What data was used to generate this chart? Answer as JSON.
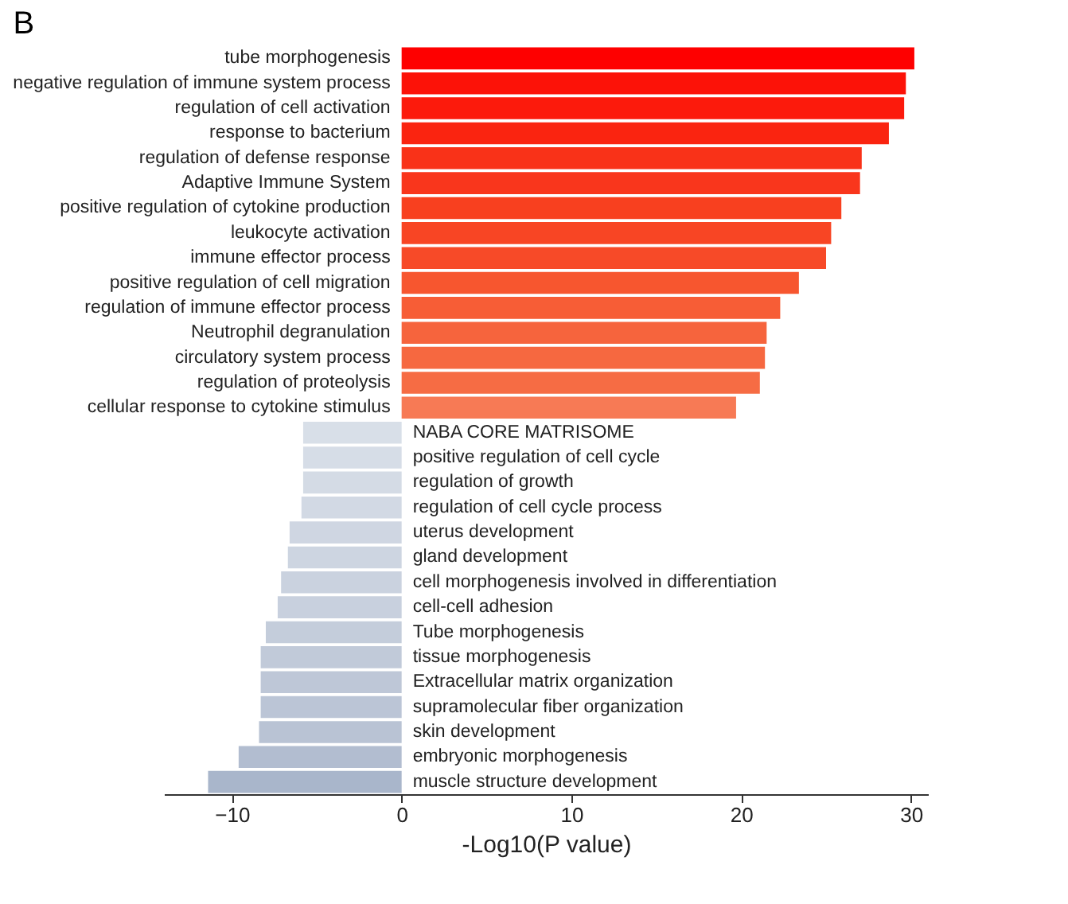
{
  "chart_data": {
    "type": "bar",
    "orientation": "horizontal",
    "title": "B",
    "xlabel": "-Log10(P value)",
    "categories": [
      "tube morphogenesis",
      "negative regulation of immune system process",
      "regulation of cell activation",
      "response to bacterium",
      "regulation of defense response",
      "Adaptive Immune System",
      "positive regulation of cytokine production",
      "leukocyte activation",
      "immune effector process",
      "positive regulation of cell migration",
      "regulation of immune effector process",
      "Neutrophil degranulation",
      "circulatory system process",
      "regulation of proteolysis",
      "cellular response to cytokine stimulus",
      "NABA CORE MATRISOME",
      "positive regulation of cell cycle",
      "regulation of growth",
      "regulation of cell cycle process",
      "uterus development",
      "gland development",
      "cell morphogenesis involved in differentiation",
      "cell-cell adhesion",
      "Tube morphogenesis",
      "tissue morphogenesis",
      "Extracellular matrix organization",
      "supramolecular fiber organization",
      "skin development",
      "embryonic morphogenesis",
      "muscle structure development"
    ],
    "values": [
      30.2,
      29.7,
      29.6,
      28.7,
      27.1,
      27.0,
      25.9,
      25.3,
      25.0,
      23.4,
      22.3,
      21.5,
      21.4,
      21.1,
      19.7,
      -5.8,
      -5.8,
      -5.8,
      -5.9,
      -6.6,
      -6.7,
      -7.1,
      -7.3,
      -8.0,
      -8.3,
      -8.3,
      -8.3,
      -8.4,
      -9.6,
      -11.4
    ],
    "colors": [
      "#fe0000",
      "#fc1208",
      "#fc1a0c",
      "#fa2410",
      "#f93218",
      "#f9361c",
      "#f8401f",
      "#f84524",
      "#f74a28",
      "#f7562f",
      "#f75d36",
      "#f6643d",
      "#f66840",
      "#f66c44",
      "#f77a55",
      "#d8dfe8",
      "#d6dde7",
      "#d4dbe5",
      "#d2d9e4",
      "#cfd6e2",
      "#cdd5e1",
      "#cad2df",
      "#c8d0de",
      "#c4cddb",
      "#c1cad9",
      "#bec7d7",
      "#bbc5d6",
      "#b9c3d4",
      "#b2bdd0",
      "#a9b6cb"
    ],
    "xlim": [
      -14,
      31
    ],
    "xticks": [
      -10,
      0,
      10,
      20,
      30
    ],
    "grid": false
  }
}
